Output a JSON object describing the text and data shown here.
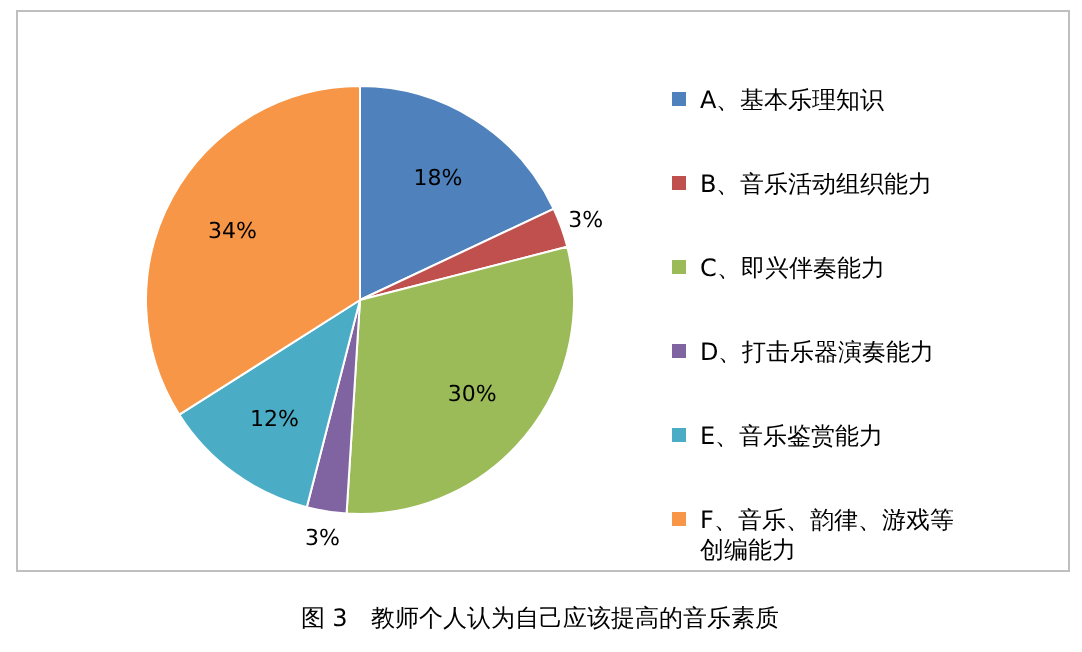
{
  "chart_data": {
    "type": "pie",
    "categories": [
      "A、基本乐理知识",
      "B、音乐活动组织能力",
      "C、即兴伴奏能力",
      "D、打击乐器演奏能力",
      "E、音乐鉴赏能力",
      "F、音乐、韵律、游戏等创编能力"
    ],
    "values": [
      18,
      3,
      30,
      3,
      12,
      34
    ],
    "colors": [
      "#4f81bd",
      "#c0504d",
      "#9bbb59",
      "#8064a2",
      "#4bacc6",
      "#f79646"
    ],
    "value_labels": [
      "18%",
      "3%",
      "30%",
      "3%",
      "12%",
      "34%"
    ],
    "legend": "right",
    "annotations": [
      "图 3　教师个人认为自己应该提高的音乐素质"
    ]
  }
}
